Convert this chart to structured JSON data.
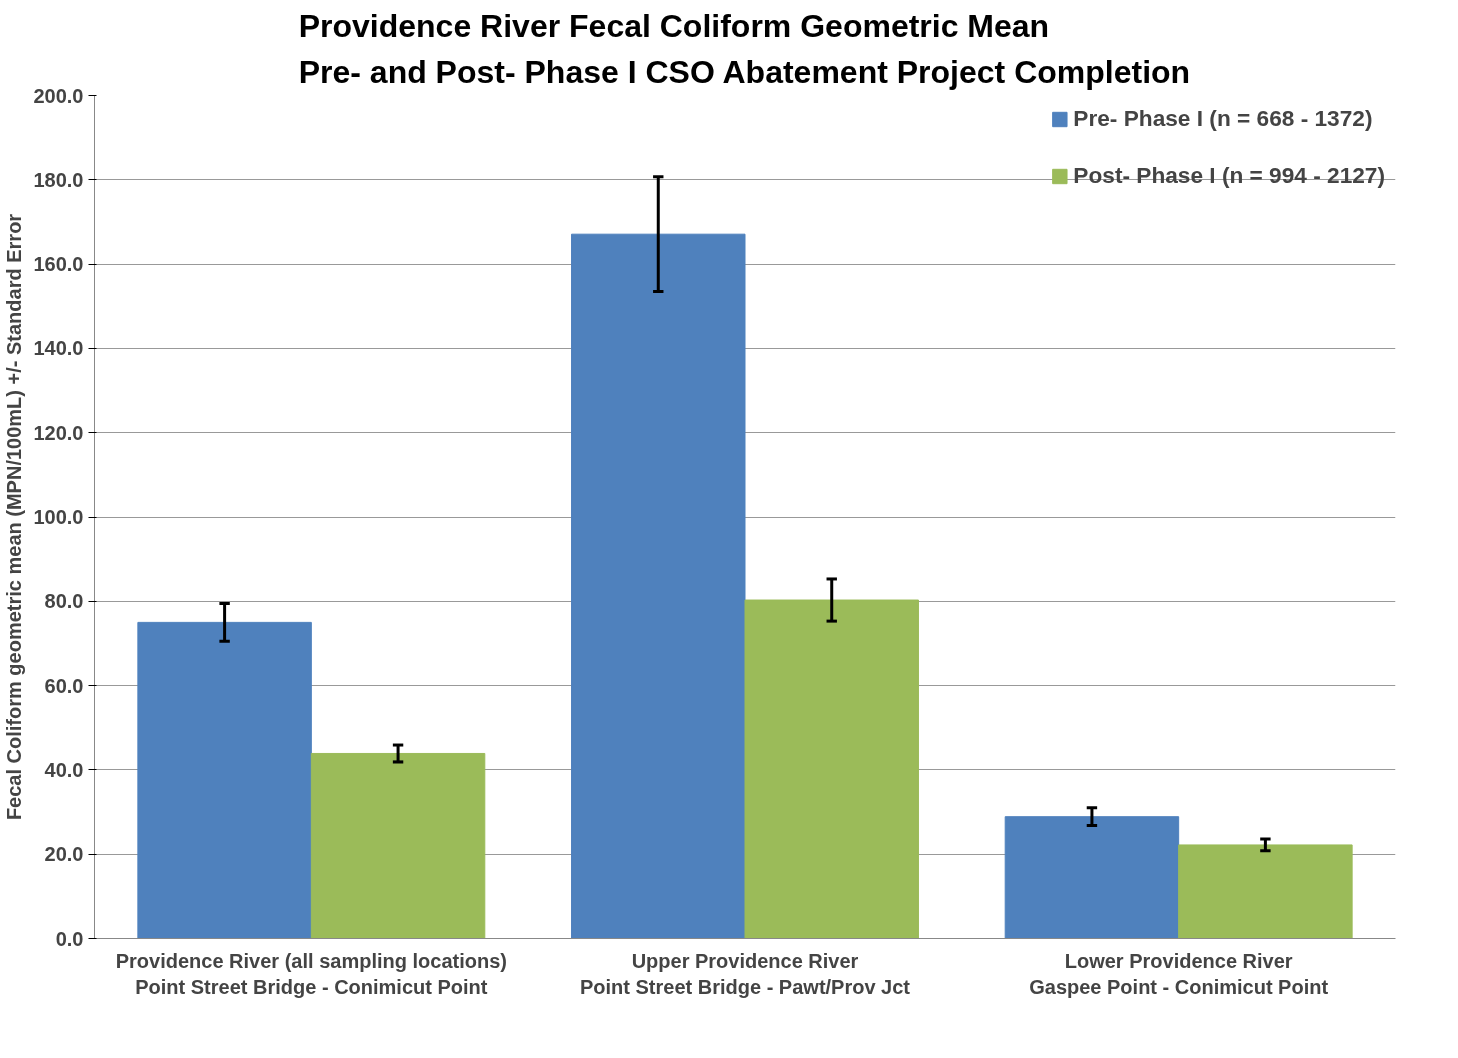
{
  "chart_data": {
    "type": "bar",
    "title": "Providence River Fecal Coliform Geometric Mean\nPre- and Post- Phase I CSO Abatement Project Completion",
    "ylabel": "Fecal Coliform geometric mean (MPN/100mL) +/- Standard Error",
    "categories": [
      "Providence River (all sampling locations)\nPoint Street Bridge - Conimicut Point",
      "Upper Providence River\nPoint Street Bridge - Pawt/Prov Jct",
      "Lower Providence River\nGaspee Point - Conimicut Point"
    ],
    "series": [
      {
        "name": "Pre- Phase I (n = 668 - 1372)",
        "color": "#4f81bd",
        "values": [
          75.0,
          167.1,
          28.9
        ],
        "errors": [
          4.5,
          13.6,
          2.1
        ]
      },
      {
        "name": "Post- Phase I (n = 994 - 2127)",
        "color": "#9bbb59",
        "values": [
          43.9,
          80.3,
          22.2
        ],
        "errors": [
          2.0,
          5.0,
          1.4
        ]
      }
    ],
    "ylim": [
      0,
      200
    ],
    "yticks": [
      {
        "value": 0,
        "label": "0.0"
      },
      {
        "value": 20,
        "label": "20.0"
      },
      {
        "value": 40,
        "label": "40.0"
      },
      {
        "value": 60,
        "label": "60.0"
      },
      {
        "value": 80,
        "label": "80.0"
      },
      {
        "value": 100,
        "label": "100.0"
      },
      {
        "value": 120,
        "label": "120.0"
      },
      {
        "value": 140,
        "label": "140.0"
      },
      {
        "value": 160,
        "label": "160.0"
      },
      {
        "value": 180,
        "label": "180.0"
      },
      {
        "value": 200,
        "label": "200.0"
      }
    ],
    "grid": "y",
    "legend": "top right"
  }
}
